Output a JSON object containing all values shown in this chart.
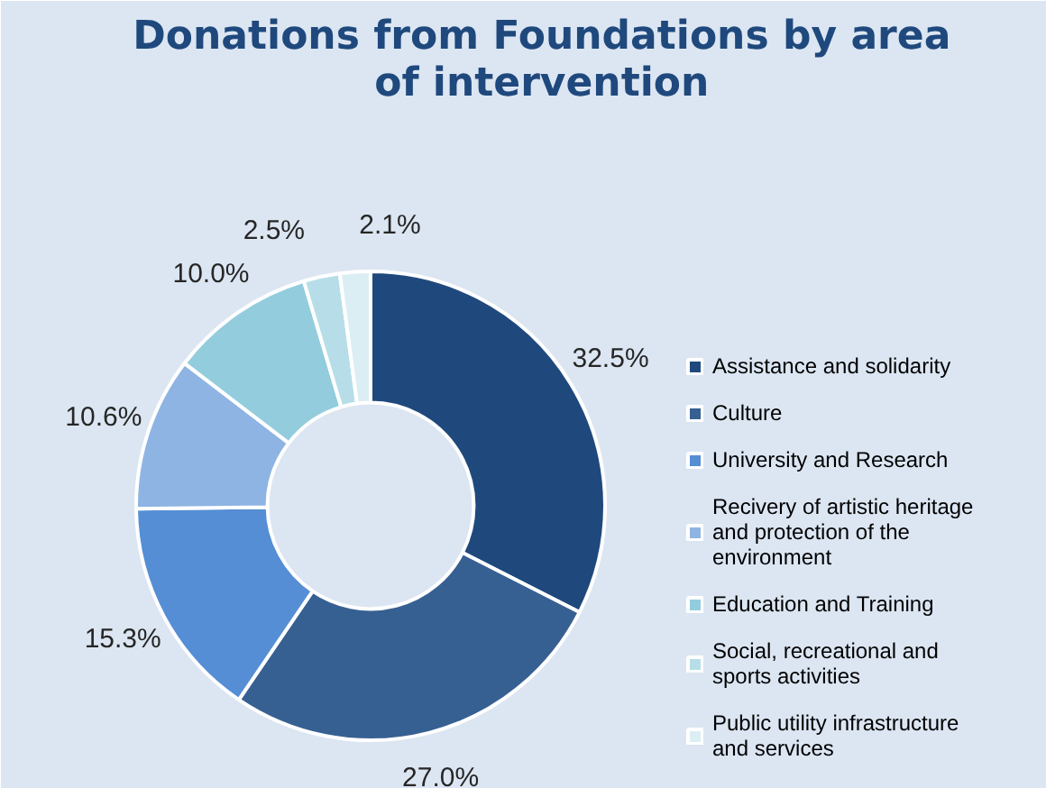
{
  "chart_data": {
    "type": "donut",
    "title": "Donations from Foundations by area of intervention",
    "categories": [
      "Assistance and solidarity",
      "Culture",
      "University and Research",
      "Recivery of artistic heritage and protection of the environment",
      "Education and Training",
      "Social, recreational and sports activities",
      "Public utility infrastructure and services"
    ],
    "values": [
      32.5,
      27.0,
      15.3,
      10.6,
      10.0,
      2.5,
      2.1
    ],
    "value_labels": [
      "32.5%",
      "27.0%",
      "15.3%",
      "10.6%",
      "10.0%",
      "2.5%",
      "2.1%"
    ],
    "colors": [
      "#1f497d",
      "#376092",
      "#558ed5",
      "#8eb4e3",
      "#93cddd",
      "#b7dee8",
      "#dbeef4"
    ],
    "legend": "right"
  }
}
